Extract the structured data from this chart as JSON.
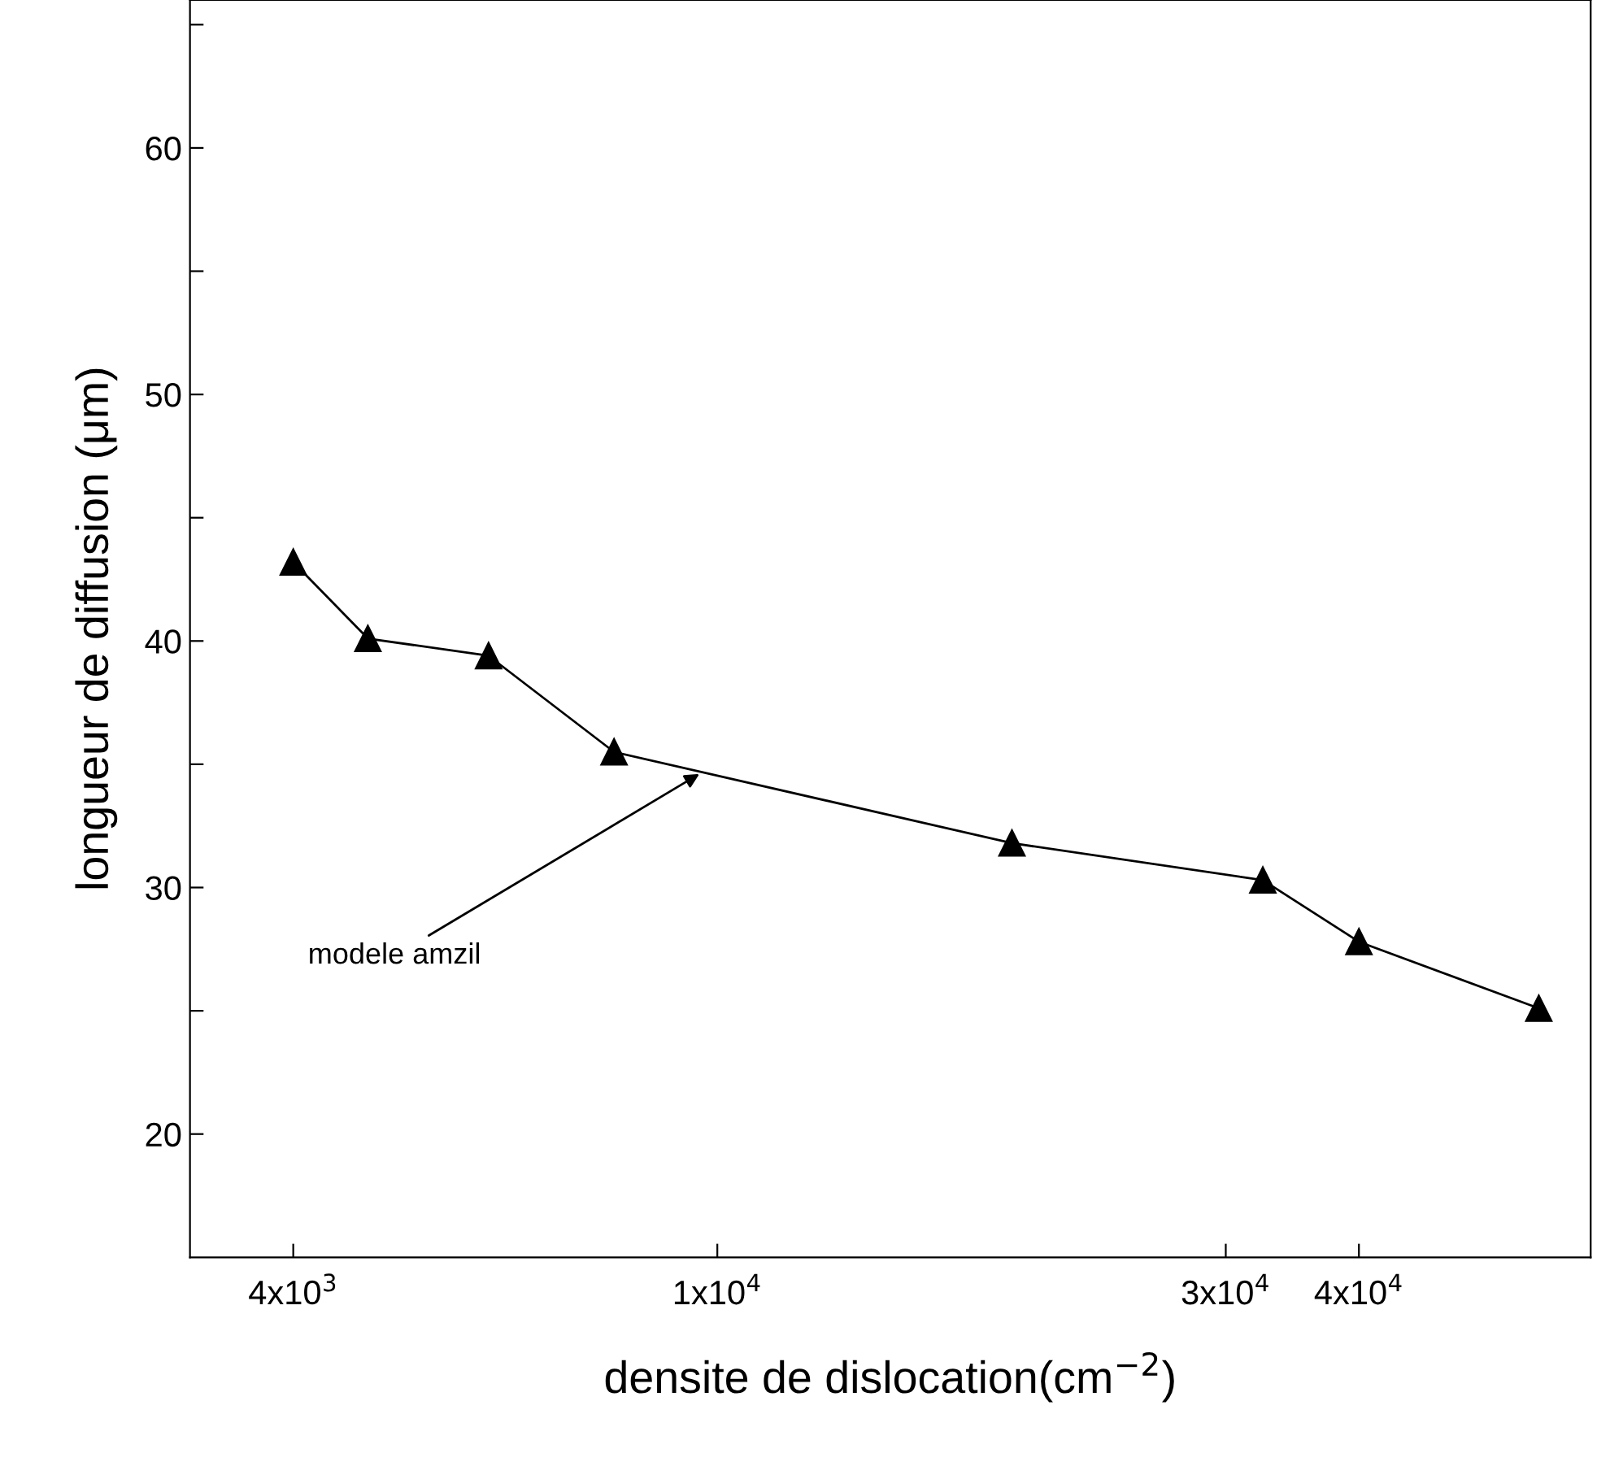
{
  "chart_data": {
    "type": "line",
    "xlabel": "densite de dislocation(cm$^{−2}$)",
    "ylabel": "longueur de diffusion (μm)",
    "x": [
      4000,
      4700,
      6100,
      8000,
      18900,
      32500,
      40000,
      59000
    ],
    "series": [
      {
        "color": "#000000",
        "values": [
          43.2,
          40.1,
          39.4,
          35.5,
          31.8,
          30.3,
          27.8,
          25.1
        ]
      }
    ],
    "marker": "triangle",
    "line_style": "solid",
    "log": "x",
    "xlim": [
      3200,
      66000
    ],
    "xticks": [
      {
        "value": 4000,
        "label": "4x10$^{3}$"
      },
      {
        "value": 10000,
        "label": "1x10$^{4}$"
      },
      {
        "value": 30000,
        "label": "3x10$^{4}$"
      },
      {
        "value": 40000,
        "label": "4x10$^{4}$"
      }
    ],
    "ylim": [
      15,
      66
    ],
    "yticks": [
      20,
      {
        "value": 25,
        "label": null
      },
      30,
      {
        "value": 35,
        "label": null
      },
      40,
      {
        "value": 45,
        "label": null
      },
      50,
      {
        "value": 55,
        "label": null
      },
      60,
      {
        "value": 65,
        "label": null
      }
    ],
    "annotations": [
      {
        "text": "modele amzil",
        "x": 9700,
        "y": 34.7
      }
    ],
    "grid": false,
    "legend": false
  }
}
